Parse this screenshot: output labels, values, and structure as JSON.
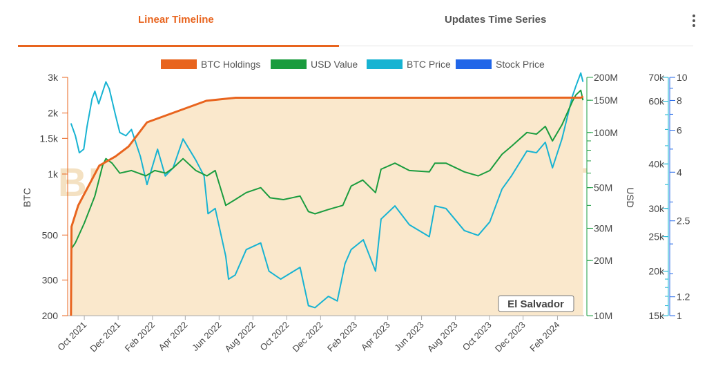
{
  "tabs": [
    {
      "label": "Linear Timeline",
      "active": true
    },
    {
      "label": "Updates Time Series",
      "active": false
    }
  ],
  "menu_icon": "kebab-menu-icon",
  "chart_data": {
    "type": "line",
    "legend": [
      {
        "name": "BTC Holdings",
        "color": "#e8641e"
      },
      {
        "name": "USD Value",
        "color": "#1a9c3e"
      },
      {
        "name": "BTC Price",
        "color": "#17b3d2"
      },
      {
        "name": "Stock Price",
        "color": "#2166e8"
      }
    ],
    "legend_position": "top-center",
    "watermark": "BITCOINTREASURIESNET",
    "entity_label": "El Salvador",
    "x_range": [
      "2021-09-01",
      "2024-03-20"
    ],
    "x_ticks": [
      "Oct 2021",
      "Dec 2021",
      "Feb 2022",
      "Apr 2022",
      "Jun 2022",
      "Aug 2022",
      "Oct 2022",
      "Dec 2022",
      "Feb 2023",
      "Apr 2023",
      "Jun 2023",
      "Aug 2023",
      "Oct 2023",
      "Dec 2023",
      "Feb 2024"
    ],
    "axes": {
      "btc": {
        "label": "BTC",
        "scale": "log",
        "range": [
          200,
          3000
        ],
        "ticks": [
          "200",
          "300",
          "500",
          "1k",
          "1.5k",
          "2k",
          "3k"
        ],
        "tick_values": [
          200,
          300,
          500,
          1000,
          1500,
          2000,
          3000
        ]
      },
      "usd": {
        "label": "USD",
        "scale": "log",
        "range": [
          10,
          200
        ],
        "unit": "M",
        "ticks": [
          "10M",
          "20M",
          "30M",
          "50M",
          "100M",
          "150M",
          "200M"
        ],
        "tick_values": [
          10,
          20,
          30,
          50,
          100,
          150,
          200
        ]
      },
      "btc_price": {
        "label": "",
        "scale": "log",
        "range": [
          15,
          70
        ],
        "unit": "k",
        "ticks": [
          "15k",
          "20k",
          "25k",
          "30k",
          "40k",
          "60k",
          "70k"
        ],
        "tick_values": [
          15,
          20,
          25,
          30,
          40,
          60,
          70
        ]
      },
      "stock_price": {
        "label": "",
        "scale": "log",
        "range": [
          1,
          10
        ],
        "ticks": [
          "1",
          "1.2",
          "2.5",
          "4",
          "6",
          "8",
          "10"
        ],
        "tick_values": [
          1,
          1.2,
          2.5,
          4,
          6,
          8,
          10
        ]
      }
    },
    "series": [
      {
        "name": "BTC Holdings",
        "axis": "btc",
        "color": "#e8641e",
        "fill": "#fae8cc",
        "points": [
          [
            "2021-09-07",
            200
          ],
          [
            "2021-09-08",
            550
          ],
          [
            "2021-09-20",
            700
          ],
          [
            "2021-10-28",
            1100
          ],
          [
            "2021-11-26",
            1220
          ],
          [
            "2021-12-20",
            1370
          ],
          [
            "2022-01-22",
            1800
          ],
          [
            "2022-05-09",
            2300
          ],
          [
            "2022-07-01",
            2380
          ],
          [
            "2024-03-15",
            2381
          ],
          [
            "2024-03-18",
            2420
          ]
        ]
      },
      {
        "name": "USD Value",
        "axis": "usd",
        "color": "#1a9c3e",
        "points": [
          [
            "2021-09-07",
            23
          ],
          [
            "2021-09-15",
            25
          ],
          [
            "2021-10-01",
            32
          ],
          [
            "2021-10-20",
            45
          ],
          [
            "2021-11-03",
            66
          ],
          [
            "2021-11-09",
            72
          ],
          [
            "2021-11-20",
            68
          ],
          [
            "2021-12-04",
            60
          ],
          [
            "2021-12-25",
            62
          ],
          [
            "2022-01-20",
            58
          ],
          [
            "2022-02-05",
            62
          ],
          [
            "2022-02-25",
            60
          ],
          [
            "2022-03-10",
            64
          ],
          [
            "2022-03-28",
            72
          ],
          [
            "2022-04-20",
            62
          ],
          [
            "2022-05-10",
            58
          ],
          [
            "2022-05-25",
            62
          ],
          [
            "2022-06-13",
            40
          ],
          [
            "2022-06-30",
            43
          ],
          [
            "2022-07-20",
            47
          ],
          [
            "2022-08-15",
            50
          ],
          [
            "2022-09-01",
            44
          ],
          [
            "2022-09-25",
            43
          ],
          [
            "2022-10-25",
            45
          ],
          [
            "2022-11-09",
            37
          ],
          [
            "2022-11-21",
            36
          ],
          [
            "2022-12-15",
            38
          ],
          [
            "2023-01-10",
            40
          ],
          [
            "2023-01-25",
            51
          ],
          [
            "2023-02-15",
            55
          ],
          [
            "2023-03-10",
            47
          ],
          [
            "2023-03-20",
            63
          ],
          [
            "2023-04-14",
            68
          ],
          [
            "2023-05-10",
            62
          ],
          [
            "2023-06-15",
            61
          ],
          [
            "2023-06-25",
            68
          ],
          [
            "2023-07-15",
            68
          ],
          [
            "2023-08-17",
            61
          ],
          [
            "2023-09-11",
            58
          ],
          [
            "2023-10-02",
            62
          ],
          [
            "2023-10-24",
            76
          ],
          [
            "2023-11-10",
            84
          ],
          [
            "2023-12-08",
            100
          ],
          [
            "2023-12-25",
            98
          ],
          [
            "2024-01-10",
            108
          ],
          [
            "2024-01-23",
            90
          ],
          [
            "2024-02-09",
            110
          ],
          [
            "2024-02-28",
            148
          ],
          [
            "2024-03-05",
            160
          ],
          [
            "2024-03-14",
            170
          ],
          [
            "2024-03-18",
            150
          ]
        ]
      },
      {
        "name": "BTC Price",
        "axis": "btc_price",
        "color": "#17b3d2",
        "points": [
          [
            "2021-09-07",
            52
          ],
          [
            "2021-09-15",
            48
          ],
          [
            "2021-09-22",
            43
          ],
          [
            "2021-09-30",
            44
          ],
          [
            "2021-10-06",
            51
          ],
          [
            "2021-10-15",
            61
          ],
          [
            "2021-10-20",
            64
          ],
          [
            "2021-10-27",
            59
          ],
          [
            "2021-11-09",
            68
          ],
          [
            "2021-11-15",
            65
          ],
          [
            "2021-11-26",
            55
          ],
          [
            "2021-12-04",
            49
          ],
          [
            "2021-12-15",
            48
          ],
          [
            "2021-12-25",
            50
          ],
          [
            "2022-01-10",
            42
          ],
          [
            "2022-01-22",
            35
          ],
          [
            "2022-02-10",
            44
          ],
          [
            "2022-02-24",
            37
          ],
          [
            "2022-03-10",
            39
          ],
          [
            "2022-03-28",
            47
          ],
          [
            "2022-04-20",
            41
          ],
          [
            "2022-05-05",
            37
          ],
          [
            "2022-05-12",
            29
          ],
          [
            "2022-05-25",
            30
          ],
          [
            "2022-06-13",
            22
          ],
          [
            "2022-06-18",
            19
          ],
          [
            "2022-06-30",
            19.5
          ],
          [
            "2022-07-20",
            23
          ],
          [
            "2022-08-15",
            24
          ],
          [
            "2022-08-30",
            20
          ],
          [
            "2022-09-20",
            19
          ],
          [
            "2022-10-25",
            20.5
          ],
          [
            "2022-11-09",
            16
          ],
          [
            "2022-11-21",
            15.8
          ],
          [
            "2022-12-15",
            17
          ],
          [
            "2022-12-31",
            16.5
          ],
          [
            "2023-01-14",
            21
          ],
          [
            "2023-01-25",
            23
          ],
          [
            "2023-02-16",
            24.5
          ],
          [
            "2023-03-10",
            20
          ],
          [
            "2023-03-20",
            28
          ],
          [
            "2023-04-14",
            30.5
          ],
          [
            "2023-05-10",
            27
          ],
          [
            "2023-06-15",
            25
          ],
          [
            "2023-06-25",
            30.5
          ],
          [
            "2023-07-15",
            30
          ],
          [
            "2023-08-17",
            26
          ],
          [
            "2023-09-11",
            25.2
          ],
          [
            "2023-10-02",
            27.5
          ],
          [
            "2023-10-24",
            34
          ],
          [
            "2023-11-10",
            37
          ],
          [
            "2023-12-08",
            43.5
          ],
          [
            "2023-12-25",
            43
          ],
          [
            "2024-01-10",
            46
          ],
          [
            "2024-01-23",
            39
          ],
          [
            "2024-02-09",
            47
          ],
          [
            "2024-02-28",
            62
          ],
          [
            "2024-03-05",
            66
          ],
          [
            "2024-03-14",
            72
          ],
          [
            "2024-03-18",
            68
          ]
        ]
      }
    ]
  }
}
